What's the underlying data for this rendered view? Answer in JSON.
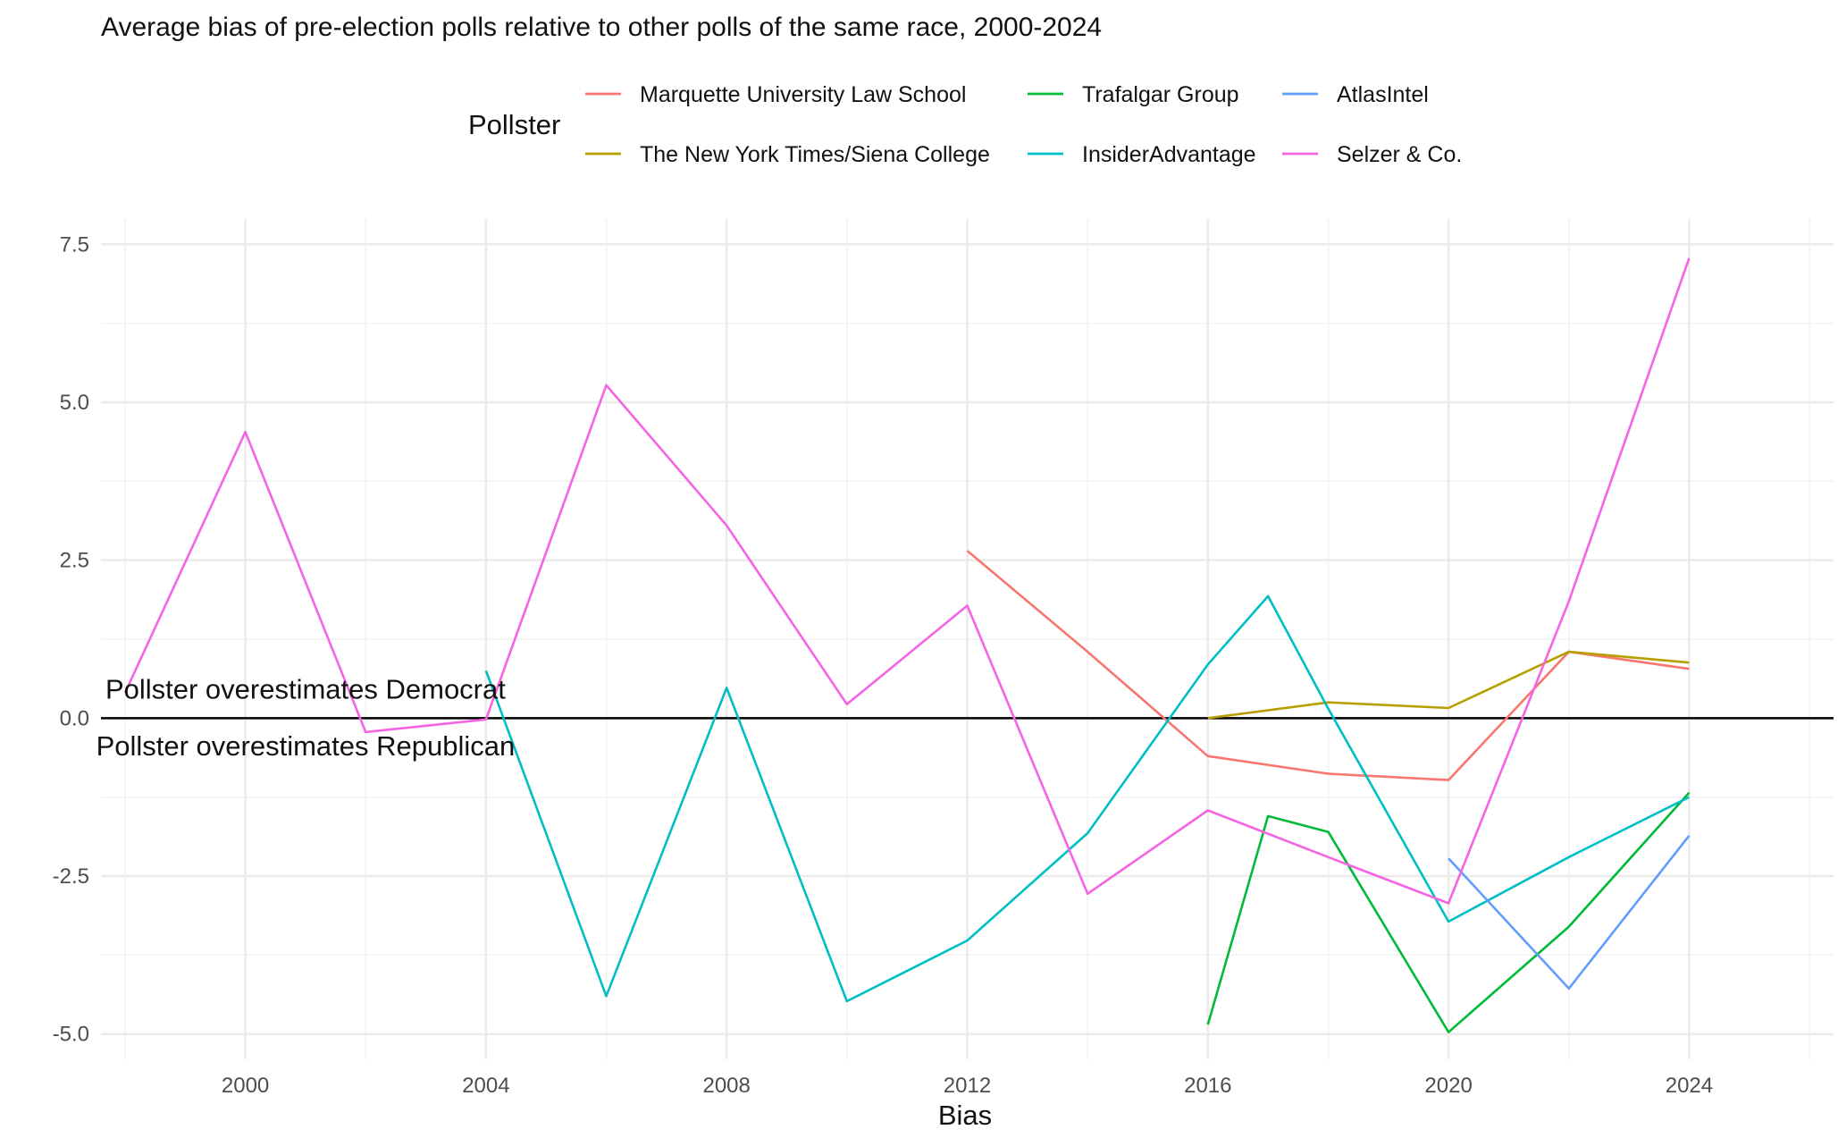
{
  "chart_data": {
    "type": "line",
    "title": "Average bias of pre-election polls relative to other polls of the same race, 2000-2024",
    "xlabel": "Bias",
    "ylabel": "",
    "xlim": [
      1997.6,
      2026.4
    ],
    "ylim": [
      -5.4,
      7.9
    ],
    "x_ticks": [
      2000,
      2004,
      2008,
      2012,
      2016,
      2020,
      2024
    ],
    "x_tick_labels": [
      "2000",
      "2004",
      "2008",
      "2012",
      "2016",
      "2020",
      "2024"
    ],
    "y_ticks": [
      -5.0,
      -2.5,
      0.0,
      2.5,
      5.0,
      7.5
    ],
    "y_tick_labels": [
      "-5.0",
      "-2.5",
      "0.0",
      "2.5",
      "5.0",
      "7.5"
    ],
    "grid": true,
    "reference_line": 0,
    "legend": {
      "title": "Pollster",
      "position": "top"
    },
    "annotations": [
      {
        "text": "Pollster overestimates Democrat",
        "x": 2001,
        "y": 0.45
      },
      {
        "text": "Pollster overestimates Republican",
        "x": 2001,
        "y": -0.45
      }
    ],
    "series": [
      {
        "name": "Marquette University Law School",
        "color": "#F8766D",
        "points": [
          [
            2012,
            2.65
          ],
          [
            2014,
            1.05
          ],
          [
            2016,
            -0.6
          ],
          [
            2018,
            -0.88
          ],
          [
            2020,
            -0.98
          ],
          [
            2022,
            1.05
          ],
          [
            2024,
            0.78
          ]
        ]
      },
      {
        "name": "The New York Times/Siena College",
        "color": "#B79F00",
        "points": [
          [
            2016,
            0.0
          ],
          [
            2018,
            0.25
          ],
          [
            2020,
            0.16
          ],
          [
            2022,
            1.05
          ],
          [
            2024,
            0.88
          ]
        ]
      },
      {
        "name": "Trafalgar Group",
        "color": "#00BA38",
        "points": [
          [
            2016,
            -4.85
          ],
          [
            2017,
            -1.55
          ],
          [
            2018,
            -1.8
          ],
          [
            2020,
            -4.97
          ],
          [
            2022,
            -3.3
          ],
          [
            2024,
            -1.18
          ]
        ]
      },
      {
        "name": "InsiderAdvantage",
        "color": "#00BFC4",
        "points": [
          [
            2004,
            0.75
          ],
          [
            2006,
            -4.4
          ],
          [
            2008,
            0.48
          ],
          [
            2010,
            -4.48
          ],
          [
            2012,
            -3.52
          ],
          [
            2014,
            -1.82
          ],
          [
            2016,
            0.85
          ],
          [
            2017,
            1.93
          ],
          [
            2018,
            0.15
          ],
          [
            2020,
            -3.22
          ],
          [
            2022,
            -2.2
          ],
          [
            2024,
            -1.25
          ]
        ]
      },
      {
        "name": "AtlasIntel",
        "color": "#619CFF",
        "points": [
          [
            2020,
            -2.22
          ],
          [
            2022,
            -4.28
          ],
          [
            2024,
            -1.86
          ]
        ]
      },
      {
        "name": "Selzer & Co.",
        "color": "#F564E3",
        "points": [
          [
            1998,
            0.4
          ],
          [
            2000,
            4.53
          ],
          [
            2002,
            -0.22
          ],
          [
            2004,
            -0.02
          ],
          [
            2006,
            5.27
          ],
          [
            2008,
            3.05
          ],
          [
            2010,
            0.22
          ],
          [
            2012,
            1.78
          ],
          [
            2014,
            -2.78
          ],
          [
            2016,
            -1.46
          ],
          [
            2018,
            -2.2
          ],
          [
            2020,
            -2.93
          ],
          [
            2022,
            1.85
          ],
          [
            2024,
            7.28
          ]
        ]
      }
    ]
  }
}
